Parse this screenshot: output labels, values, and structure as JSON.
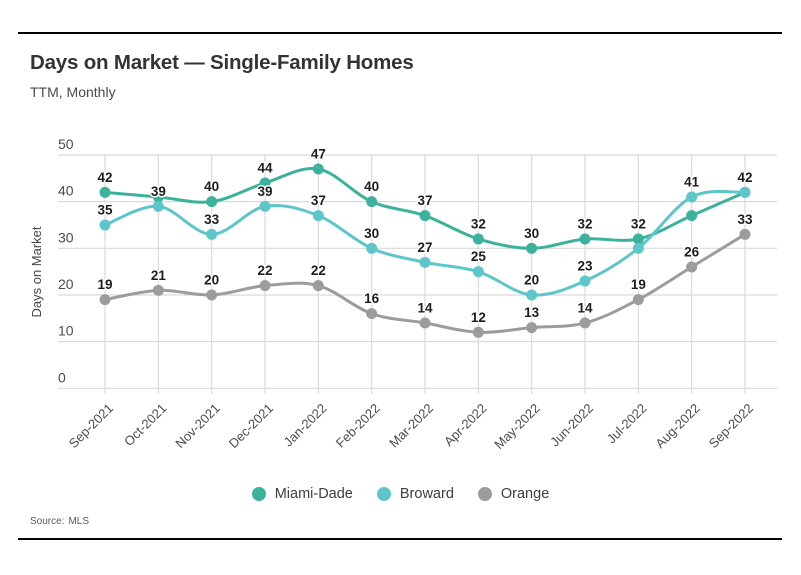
{
  "page": {
    "title": "Days on Market — Single-Family Homes",
    "subtitle": "TTM, Monthly",
    "source_label": "Source:",
    "source_value": "MLS"
  },
  "chart_data": {
    "type": "line",
    "title": "Days on Market — Single-Family Homes",
    "subtitle": "TTM, Monthly",
    "xlabel": "",
    "ylabel": "Days on Market",
    "ylim": [
      0,
      50
    ],
    "yticks": [
      0,
      10,
      20,
      30,
      40,
      50
    ],
    "grid": true,
    "legend_position": "bottom-center",
    "categories": [
      "Sep-2021",
      "Oct-2021",
      "Nov-2021",
      "Dec-2021",
      "Jan-2022",
      "Feb-2022",
      "Mar-2022",
      "Apr-2022",
      "May-2022",
      "Jun-2022",
      "Jul-2022",
      "Aug-2022",
      "Sep-2022"
    ],
    "series": [
      {
        "name": "Miami-Dade",
        "color": "#3cb19c",
        "values": [
          42,
          41,
          40,
          44,
          47,
          40,
          37,
          32,
          30,
          32,
          32,
          37,
          42
        ],
        "point_labels": [
          "42",
          null,
          "40",
          "44",
          "47",
          "40",
          "37",
          "32",
          "30",
          "32",
          "32",
          null,
          "42"
        ]
      },
      {
        "name": "Broward",
        "color": "#5dc6ca",
        "values": [
          35,
          39,
          33,
          39,
          37,
          30,
          27,
          25,
          20,
          23,
          30,
          41,
          42
        ],
        "point_labels": [
          "35",
          "39",
          "33",
          "39",
          "37",
          "30",
          "27",
          "25",
          "20",
          "23",
          null,
          "41",
          null
        ]
      },
      {
        "name": "Orange",
        "color": "#9c9c9c",
        "values": [
          19,
          21,
          20,
          22,
          22,
          16,
          14,
          12,
          13,
          14,
          19,
          26,
          33
        ],
        "point_labels": [
          "19",
          "21",
          "20",
          "22",
          "22",
          "16",
          "14",
          "12",
          "13",
          "14",
          "19",
          "26",
          "33"
        ]
      }
    ],
    "colors": {
      "gridline": "#dadada",
      "value_label": "#1d1d1d",
      "axis_label": "#4c4c4c",
      "rule": "#000000"
    }
  }
}
